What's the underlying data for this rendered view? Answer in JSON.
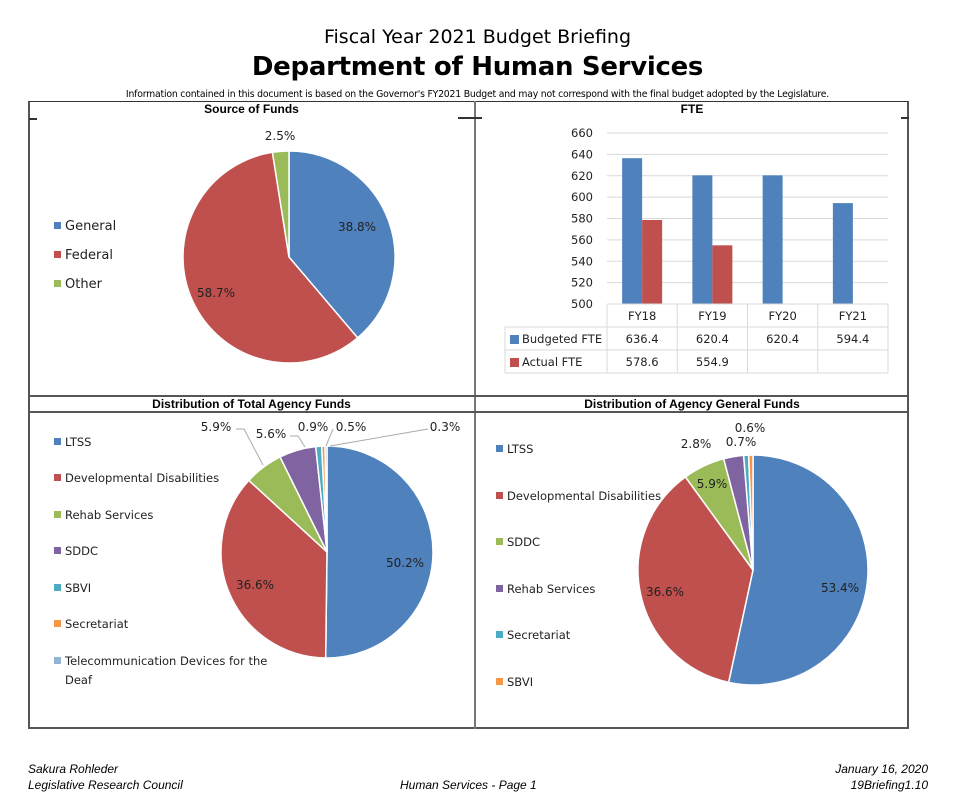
{
  "header": {
    "subtitle": "Fiscal Year 2021 Budget Briefing",
    "title": "Department of Human Services",
    "disclaimer": "Information contained in this document is based on the Governor's FY2021 Budget and may not correspond with the final budget adopted by the Legislature."
  },
  "colors": {
    "blue": "#4F81BD",
    "red": "#C0504D",
    "green": "#9BBB59",
    "purple": "#8064A2",
    "teal": "#4BACC6",
    "orange": "#F79646",
    "lightblue": "#95B3D7"
  },
  "chart_data": [
    {
      "type": "pie",
      "title": "Source of Funds",
      "categories": [
        "General",
        "Federal",
        "Other"
      ],
      "values": [
        38.8,
        58.7,
        2.5
      ],
      "labels": [
        "38.8%",
        "58.7%",
        "2.5%"
      ],
      "colors": [
        "#4F81BD",
        "#C0504D",
        "#9BBB59"
      ],
      "legend": "left"
    },
    {
      "type": "bar",
      "title": "FTE",
      "categories": [
        "FY18",
        "FY19",
        "FY20",
        "FY21"
      ],
      "series": [
        {
          "name": "Budgeted FTE",
          "values": [
            636.4,
            620.4,
            620.4,
            594.4
          ],
          "color": "#4F81BD"
        },
        {
          "name": "Actual FTE",
          "values": [
            578.6,
            554.9,
            null,
            null
          ],
          "color": "#C0504D"
        }
      ],
      "table": {
        "rows": [
          [
            "636.4",
            "620.4",
            "620.4",
            "594.4"
          ],
          [
            "578.6",
            "554.9",
            "",
            ""
          ]
        ]
      },
      "yticks": [
        500,
        520,
        540,
        560,
        580,
        600,
        620,
        640,
        660
      ],
      "ylim": [
        500,
        660
      ],
      "grid": true,
      "legend": "data-table"
    },
    {
      "type": "pie",
      "title": "Distribution of Total Agency Funds",
      "categories": [
        "LTSS",
        "Developmental Disabilities",
        "Rehab Services",
        "SDDC",
        "SBVI",
        "Secretariat",
        "Telecommunication Devices for the Deaf"
      ],
      "values": [
        50.2,
        36.6,
        5.9,
        5.6,
        0.9,
        0.5,
        0.3
      ],
      "labels": [
        "50.2%",
        "36.6%",
        "5.9%",
        "5.6%",
        "0.9%",
        "0.5%",
        "0.3%"
      ],
      "colors": [
        "#4F81BD",
        "#C0504D",
        "#9BBB59",
        "#8064A2",
        "#4BACC6",
        "#F79646",
        "#95B3D7"
      ],
      "legend": "left"
    },
    {
      "type": "pie",
      "title": "Distribution of Agency General Funds",
      "categories": [
        "LTSS",
        "Developmental Disabilities",
        "SDDC",
        "Rehab Services",
        "Secretariat",
        "SBVI"
      ],
      "values": [
        53.4,
        36.6,
        5.9,
        2.8,
        0.7,
        0.6
      ],
      "labels": [
        "53.4%",
        "36.6%",
        "5.9%",
        "2.8%",
        "0.7%",
        "0.6%"
      ],
      "colors": [
        "#4F81BD",
        "#C0504D",
        "#9BBB59",
        "#8064A2",
        "#4BACC6",
        "#F79646"
      ],
      "legend": "left"
    }
  ],
  "footer": {
    "author": "Sakura Rohleder",
    "org": "Legislative Research Council",
    "page": "Human Services - Page 1",
    "date": "January 16, 2020",
    "doc_id": "19Briefing1.10"
  }
}
